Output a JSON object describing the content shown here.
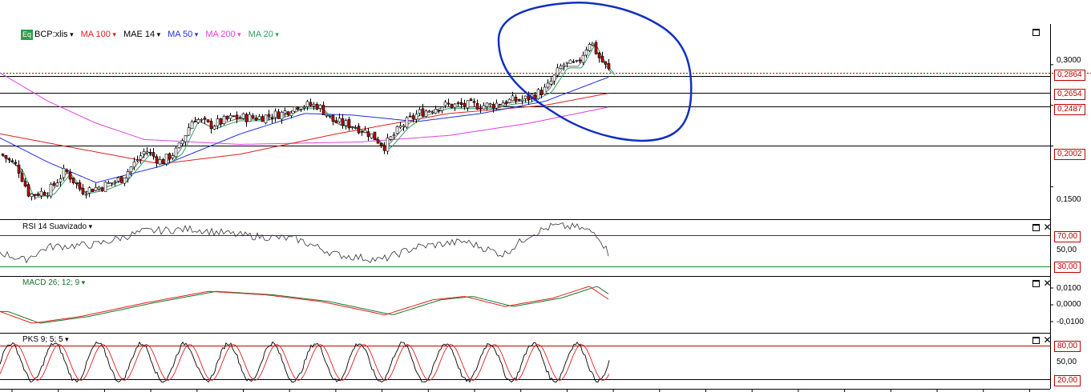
{
  "legend": {
    "symbol_badge": "Eq",
    "symbol": "BCP:xlis",
    "items": [
      {
        "label": "MA 100",
        "color": "#e02020"
      },
      {
        "label": "MAE 14",
        "color": "#000000"
      },
      {
        "label": "MA 50",
        "color": "#2030e0"
      },
      {
        "label": "MA 200",
        "color": "#e040e0"
      },
      {
        "label": "MA 20",
        "color": "#30a060"
      }
    ]
  },
  "panels": {
    "rsi_title": "RSI 14 Suavizado",
    "macd_title": "MACD 26; 12; 9",
    "pks_title": "PKS 9; 5; 5"
  },
  "price_axis": {
    "ticks": [
      "0,3000",
      "0,1500"
    ],
    "tags": [
      "0,2864",
      "0,2654",
      "0,2487",
      "0,2002"
    ]
  },
  "rsi_axis": {
    "ticks": [
      "50,00"
    ],
    "tags": [
      "70,00",
      "30,00"
    ]
  },
  "macd_axis": {
    "ticks": [
      "0,0100",
      "0,0000",
      "-0,0100"
    ]
  },
  "pks_axis": {
    "ticks": [
      "50,00"
    ],
    "tags": [
      "80,00",
      "20,00"
    ]
  },
  "chart_data": {
    "type": "candlestick",
    "ylim": [
      0.11,
      0.35
    ],
    "horizontal_levels": [
      0.2864,
      0.2654,
      0.2487,
      0.2002
    ],
    "close_anchors": [
      [
        0,
        0.19
      ],
      [
        20,
        0.175
      ],
      [
        35,
        0.14
      ],
      [
        60,
        0.145
      ],
      [
        80,
        0.17
      ],
      [
        100,
        0.145
      ],
      [
        125,
        0.15
      ],
      [
        150,
        0.16
      ],
      [
        180,
        0.195
      ],
      [
        200,
        0.18
      ],
      [
        220,
        0.195
      ],
      [
        240,
        0.235
      ],
      [
        260,
        0.225
      ],
      [
        290,
        0.235
      ],
      [
        320,
        0.235
      ],
      [
        350,
        0.24
      ],
      [
        370,
        0.25
      ],
      [
        395,
        0.25
      ],
      [
        415,
        0.23
      ],
      [
        440,
        0.225
      ],
      [
        460,
        0.215
      ],
      [
        478,
        0.2
      ],
      [
        500,
        0.225
      ],
      [
        520,
        0.24
      ],
      [
        550,
        0.25
      ],
      [
        580,
        0.25
      ],
      [
        610,
        0.25
      ],
      [
        630,
        0.255
      ],
      [
        655,
        0.258
      ],
      [
        680,
        0.27
      ],
      [
        700,
        0.3
      ],
      [
        718,
        0.3
      ],
      [
        735,
        0.33
      ],
      [
        745,
        0.31
      ],
      [
        760,
        0.29
      ]
    ],
    "ma200_anchors": [
      [
        0,
        0.29
      ],
      [
        60,
        0.255
      ],
      [
        120,
        0.228
      ],
      [
        180,
        0.208
      ],
      [
        300,
        0.202
      ],
      [
        450,
        0.205
      ],
      [
        560,
        0.213
      ],
      [
        660,
        0.228
      ],
      [
        760,
        0.248
      ]
    ],
    "ma100_anchors": [
      [
        0,
        0.215
      ],
      [
        80,
        0.2
      ],
      [
        200,
        0.178
      ],
      [
        300,
        0.19
      ],
      [
        420,
        0.215
      ],
      [
        560,
        0.24
      ],
      [
        680,
        0.25
      ],
      [
        760,
        0.265
      ]
    ],
    "ma50_anchors": [
      [
        0,
        0.21
      ],
      [
        60,
        0.18
      ],
      [
        120,
        0.155
      ],
      [
        200,
        0.175
      ],
      [
        300,
        0.215
      ],
      [
        380,
        0.24
      ],
      [
        440,
        0.238
      ],
      [
        520,
        0.23
      ],
      [
        600,
        0.24
      ],
      [
        680,
        0.255
      ],
      [
        760,
        0.285
      ]
    ],
    "rsi_anchors": [
      [
        0,
        48
      ],
      [
        30,
        38
      ],
      [
        60,
        55
      ],
      [
        120,
        58
      ],
      [
        180,
        75
      ],
      [
        240,
        78
      ],
      [
        300,
        70
      ],
      [
        370,
        65
      ],
      [
        420,
        45
      ],
      [
        475,
        38
      ],
      [
        520,
        55
      ],
      [
        580,
        62
      ],
      [
        628,
        45
      ],
      [
        660,
        70
      ],
      [
        690,
        82
      ],
      [
        720,
        80
      ],
      [
        745,
        72
      ],
      [
        760,
        45
      ]
    ],
    "macd_anchors": [
      [
        0,
        -0.004
      ],
      [
        40,
        -0.011
      ],
      [
        100,
        -0.007
      ],
      [
        180,
        0.001
      ],
      [
        260,
        0.008
      ],
      [
        330,
        0.006
      ],
      [
        400,
        0.002
      ],
      [
        480,
        -0.006
      ],
      [
        540,
        0.003
      ],
      [
        580,
        0.005
      ],
      [
        630,
        -0.001
      ],
      [
        690,
        0.004
      ],
      [
        735,
        0.011
      ],
      [
        760,
        0.003
      ]
    ],
    "pks_cycle_count": 14
  }
}
